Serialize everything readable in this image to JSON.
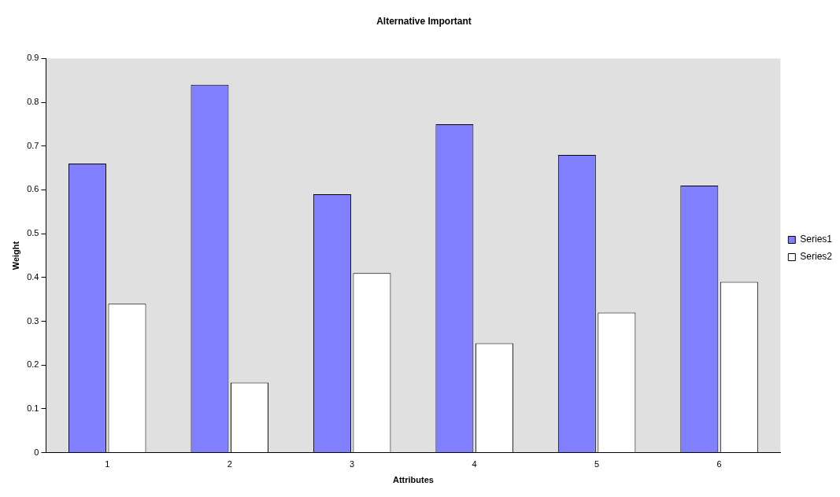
{
  "chart_data": {
    "type": "bar",
    "title": "Alternative Important",
    "xlabel": "Attributes",
    "ylabel": "Weight",
    "categories": [
      "1",
      "2",
      "3",
      "4",
      "5",
      "6"
    ],
    "series": [
      {
        "name": "Series1",
        "color": "#8080ff",
        "values": [
          0.66,
          0.84,
          0.59,
          0.75,
          0.68,
          0.61
        ]
      },
      {
        "name": "Series2",
        "color": "#ffffff",
        "values": [
          0.34,
          0.16,
          0.41,
          0.25,
          0.32,
          0.39
        ]
      }
    ],
    "ylim": [
      0,
      0.9
    ],
    "yticks": [
      0,
      0.1,
      0.2,
      0.3,
      0.4,
      0.5,
      0.6,
      0.7,
      0.8,
      0.9
    ],
    "grid": false,
    "legend": "right"
  }
}
